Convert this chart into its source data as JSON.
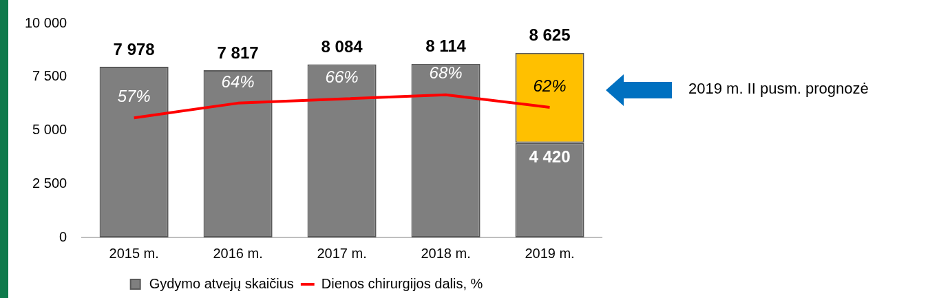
{
  "chart_data": {
    "type": "bar",
    "stacked": true,
    "categories": [
      "2015 m.",
      "2016 m.",
      "2017 m.",
      "2018 m.",
      "2019 m."
    ],
    "series": [
      {
        "name": "Gydymo atvejų skaičius",
        "color": "#7f7f7f",
        "values": [
          7978,
          7817,
          8084,
          8114,
          4420
        ],
        "value_labels": [
          null,
          null,
          null,
          null,
          "4 420"
        ]
      },
      {
        "color": "#ffc000",
        "values": [
          null,
          null,
          null,
          null,
          4205
        ]
      },
      {
        "name": "Dienos chirurgijos dalis, %",
        "type": "line",
        "axis": "y2",
        "color": "#ff0000",
        "values": [
          57,
          64,
          66,
          68,
          62
        ],
        "value_labels": [
          "57%",
          "64%",
          "66%",
          "68%",
          "62%"
        ]
      }
    ],
    "totals": [
      "7 978",
      "7 817",
      "8 084",
      "8 114",
      "8 625"
    ],
    "ylim": [
      0,
      10000
    ],
    "yticks": [
      0,
      {
        "value": 2500,
        "label": "2 500"
      },
      {
        "value": 5000,
        "label": "5 000"
      },
      {
        "value": 7500,
        "label": "7 500"
      },
      {
        "value": 10000,
        "label": "10 000"
      }
    ],
    "grid": false,
    "legend": "bottom",
    "marker": "none",
    "annotations": [
      "2019 m. II pusm. prognozė"
    ]
  }
}
